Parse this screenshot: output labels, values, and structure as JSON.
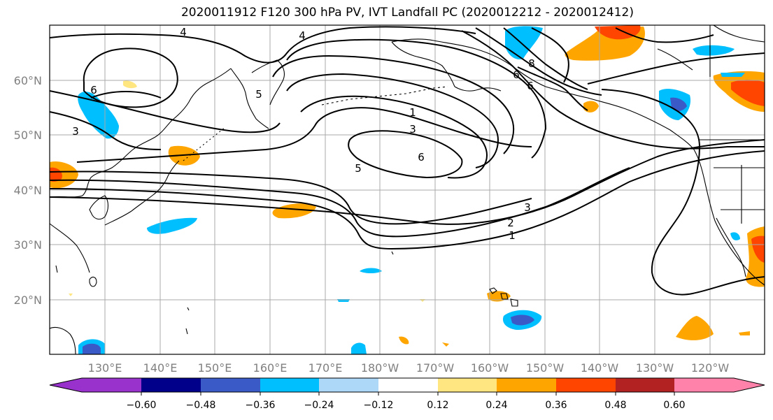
{
  "title": "2020011912 F120 300 hPa PV, IVT Landfall PC (2020012212 - 2020012412)",
  "lat_labels": [
    "60°N",
    "50°N",
    "40°N",
    "30°N",
    "20°N"
  ],
  "lon_labels": [
    "130°E",
    "140°E",
    "150°E",
    "160°E",
    "170°E",
    "180°W",
    "170°W",
    "160°W",
    "150°W",
    "140°W",
    "130°W",
    "120°W"
  ],
  "contour_labels": [
    "4",
    "4",
    "6",
    "3",
    "5",
    "6",
    "1",
    "3",
    "6",
    "5",
    "3",
    "2",
    "1",
    "6",
    "8"
  ],
  "colorbar": {
    "ticks": [
      "−0.60",
      "−0.48",
      "−0.36",
      "−0.24",
      "−0.12",
      "0.12",
      "0.24",
      "0.36",
      "0.48",
      "0.60"
    ],
    "colors": [
      "#9932cc",
      "#00008b",
      "#3a5bc7",
      "#00bfff",
      "#add8f7",
      "#ffffff",
      "#ffe680",
      "#ffa500",
      "#ff4500",
      "#b22222",
      "#ff82ab"
    ]
  },
  "colors": {
    "contour": "#000000",
    "grid": "#a9a9a9",
    "coast": "#000000"
  }
}
